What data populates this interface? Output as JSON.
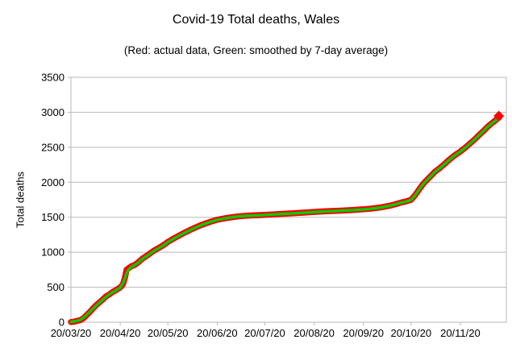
{
  "chart_data": {
    "type": "line",
    "title": "Covid-19 Total deaths, Wales",
    "subtitle": "(Red: actual data, Green: smoothed by 7-day average)",
    "ylabel": "Total deaths",
    "ylim": [
      0,
      3500
    ],
    "ytick_step": 500,
    "ytick_labels": [
      "0",
      "500",
      "1000",
      "1500",
      "2000",
      "2500",
      "3000",
      "3500"
    ],
    "x_tick_labels": [
      "20/03/20",
      "20/04/20",
      "20/05/20",
      "20/06/20",
      "20/07/20",
      "20/08/20",
      "20/09/20",
      "20/10/20",
      "20/11/20"
    ],
    "x_tick_day_offsets": [
      0,
      31,
      61,
      92,
      122,
      153,
      184,
      214,
      245
    ],
    "x_start_date": "20/03/20",
    "x_span_days": 274,
    "grid": "horizontal-only",
    "legend_position": "none",
    "colors": {
      "actual": "#ff0000",
      "smoothed": "#00cc00",
      "grid": "#b9b9b9",
      "text": "#000000",
      "background": "#ffffff"
    },
    "series": [
      {
        "name": "actual data",
        "color": "#ff0000",
        "stroke_width": 7.5,
        "points": [
          [
            0,
            2
          ],
          [
            2,
            8
          ],
          [
            4,
            20
          ],
          [
            6,
            30
          ],
          [
            8,
            60
          ],
          [
            10,
            105
          ],
          [
            12,
            150
          ],
          [
            14,
            200
          ],
          [
            16,
            245
          ],
          [
            18,
            285
          ],
          [
            20,
            325
          ],
          [
            22,
            368
          ],
          [
            24,
            395
          ],
          [
            26,
            428
          ],
          [
            28,
            455
          ],
          [
            30,
            482
          ],
          [
            31,
            500
          ],
          [
            32,
            520
          ],
          [
            33,
            560
          ],
          [
            34,
            641
          ],
          [
            35,
            751
          ],
          [
            36,
            768
          ],
          [
            37,
            783
          ],
          [
            38,
            800
          ],
          [
            40,
            818
          ],
          [
            42,
            850
          ],
          [
            45,
            910
          ],
          [
            49,
            970
          ],
          [
            52,
            1020
          ],
          [
            56,
            1072
          ],
          [
            59,
            1114
          ],
          [
            61,
            1148
          ],
          [
            64,
            1188
          ],
          [
            68,
            1238
          ],
          [
            71,
            1275
          ],
          [
            75,
            1318
          ],
          [
            78,
            1350
          ],
          [
            82,
            1390
          ],
          [
            85,
            1414
          ],
          [
            89,
            1444
          ],
          [
            92,
            1464
          ],
          [
            96,
            1482
          ],
          [
            100,
            1497
          ],
          [
            105,
            1512
          ],
          [
            110,
            1522
          ],
          [
            116,
            1528
          ],
          [
            122,
            1534
          ],
          [
            128,
            1542
          ],
          [
            134,
            1550
          ],
          [
            140,
            1558
          ],
          [
            146,
            1566
          ],
          [
            153,
            1576
          ],
          [
            159,
            1584
          ],
          [
            165,
            1590
          ],
          [
            171,
            1596
          ],
          [
            177,
            1604
          ],
          [
            184,
            1614
          ],
          [
            188,
            1622
          ],
          [
            192,
            1632
          ],
          [
            196,
            1645
          ],
          [
            200,
            1663
          ],
          [
            204,
            1685
          ],
          [
            208,
            1712
          ],
          [
            211,
            1728
          ],
          [
            214,
            1750
          ],
          [
            216,
            1802
          ],
          [
            218,
            1862
          ],
          [
            220,
            1927
          ],
          [
            222,
            1987
          ],
          [
            224,
            2034
          ],
          [
            227,
            2102
          ],
          [
            229,
            2152
          ],
          [
            232,
            2202
          ],
          [
            235,
            2260
          ],
          [
            238,
            2322
          ],
          [
            241,
            2377
          ],
          [
            243,
            2410
          ],
          [
            245,
            2440
          ],
          [
            248,
            2494
          ],
          [
            251,
            2552
          ],
          [
            254,
            2614
          ],
          [
            257,
            2680
          ],
          [
            260,
            2744
          ],
          [
            262,
            2790
          ],
          [
            264,
            2830
          ],
          [
            266,
            2865
          ],
          [
            268,
            2902
          ],
          [
            269.5,
            2930
          ]
        ]
      },
      {
        "name": "smoothed by 7-day average",
        "color": "#00cc00",
        "stroke_width": 3.4,
        "points": [
          [
            0,
            5
          ],
          [
            3,
            15
          ],
          [
            6,
            35
          ],
          [
            9,
            85
          ],
          [
            11,
            130
          ],
          [
            14,
            195
          ],
          [
            17,
            260
          ],
          [
            20,
            320
          ],
          [
            23,
            380
          ],
          [
            26,
            425
          ],
          [
            29,
            465
          ],
          [
            31,
            495
          ],
          [
            33,
            570
          ],
          [
            34,
            630
          ],
          [
            35,
            700
          ],
          [
            36,
            745
          ],
          [
            37,
            770
          ],
          [
            38,
            790
          ],
          [
            40,
            815
          ],
          [
            42,
            845
          ],
          [
            45,
            905
          ],
          [
            49,
            965
          ],
          [
            52,
            1015
          ],
          [
            56,
            1068
          ],
          [
            59,
            1110
          ],
          [
            61,
            1145
          ],
          [
            64,
            1185
          ],
          [
            68,
            1235
          ],
          [
            71,
            1272
          ],
          [
            75,
            1315
          ],
          [
            78,
            1348
          ],
          [
            82,
            1388
          ],
          [
            85,
            1412
          ],
          [
            89,
            1442
          ],
          [
            92,
            1462
          ],
          [
            96,
            1480
          ],
          [
            100,
            1495
          ],
          [
            105,
            1510
          ],
          [
            110,
            1520
          ],
          [
            116,
            1526
          ],
          [
            122,
            1532
          ],
          [
            128,
            1540
          ],
          [
            134,
            1548
          ],
          [
            140,
            1556
          ],
          [
            146,
            1564
          ],
          [
            153,
            1574
          ],
          [
            159,
            1582
          ],
          [
            165,
            1588
          ],
          [
            171,
            1594
          ],
          [
            177,
            1602
          ],
          [
            184,
            1612
          ],
          [
            188,
            1620
          ],
          [
            192,
            1630
          ],
          [
            196,
            1643
          ],
          [
            200,
            1661
          ],
          [
            204,
            1683
          ],
          [
            208,
            1710
          ],
          [
            211,
            1726
          ],
          [
            214,
            1748
          ],
          [
            216,
            1800
          ],
          [
            218,
            1860
          ],
          [
            220,
            1925
          ],
          [
            222,
            1985
          ],
          [
            224,
            2032
          ],
          [
            227,
            2100
          ],
          [
            229,
            2150
          ],
          [
            232,
            2200
          ],
          [
            235,
            2258
          ],
          [
            238,
            2320
          ],
          [
            241,
            2375
          ],
          [
            243,
            2408
          ],
          [
            245,
            2438
          ],
          [
            248,
            2492
          ],
          [
            251,
            2550
          ],
          [
            254,
            2612
          ],
          [
            257,
            2678
          ],
          [
            260,
            2742
          ],
          [
            262,
            2788
          ],
          [
            264,
            2828
          ],
          [
            266,
            2862
          ],
          [
            268,
            2895
          ]
        ]
      }
    ],
    "end_marker": {
      "day": 269.2,
      "value": 2948,
      "shape": "diamond",
      "color": "#ff0000"
    }
  }
}
